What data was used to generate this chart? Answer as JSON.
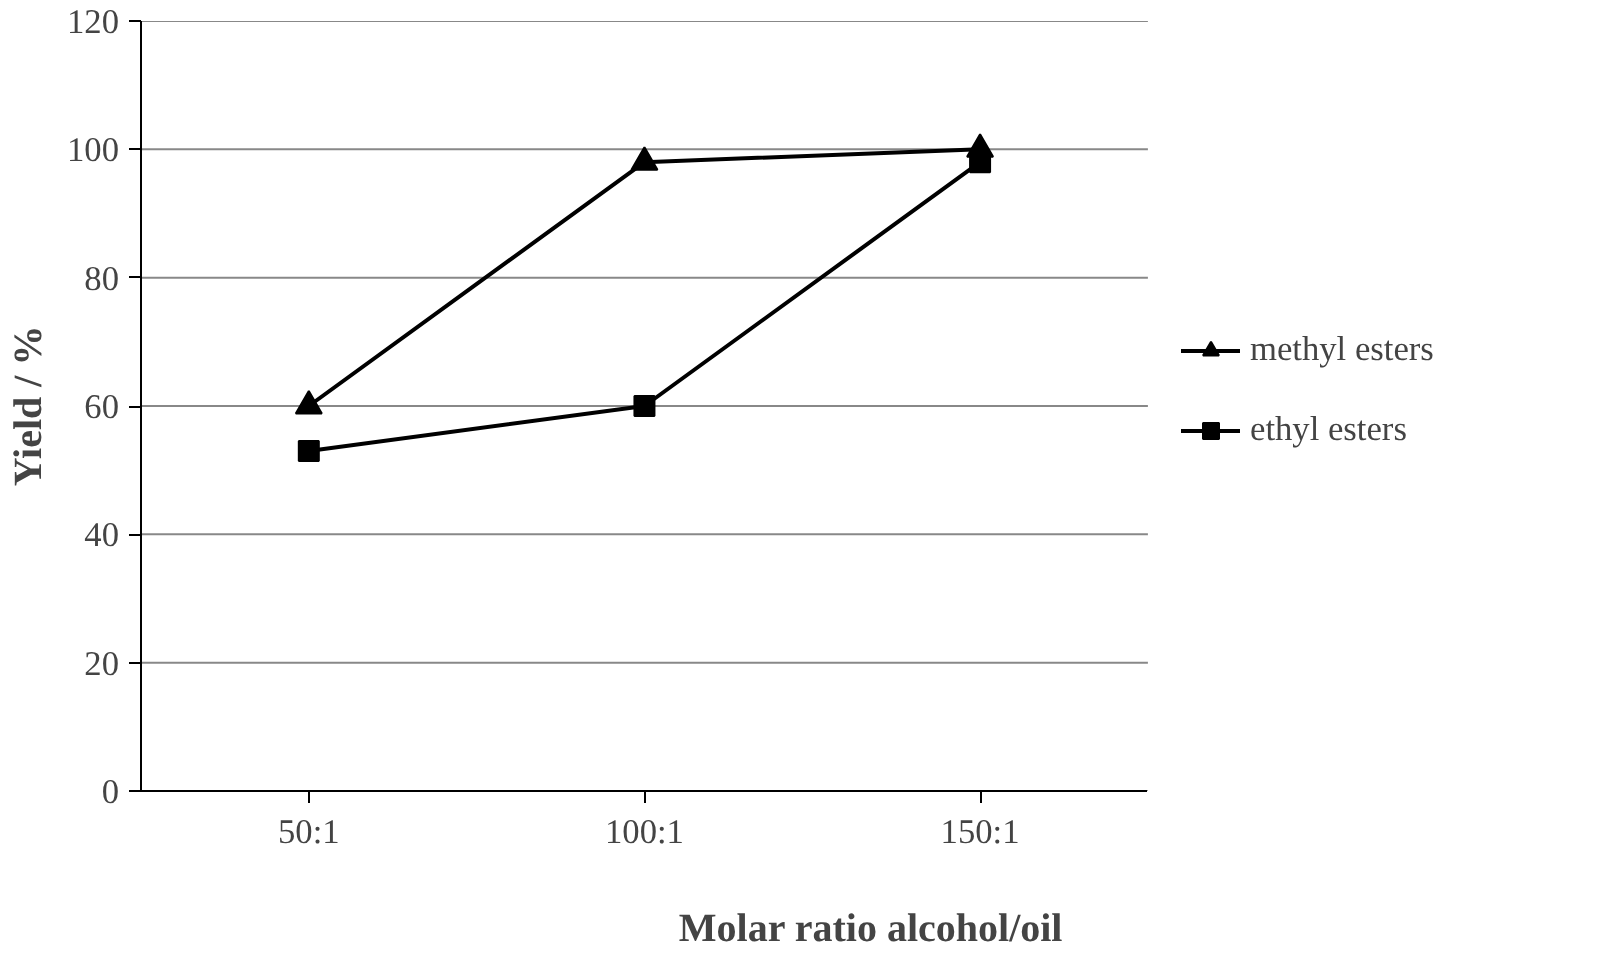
{
  "chart_data": {
    "type": "line",
    "xlabel": "Molar ratio alcohol/oil",
    "ylabel": "Yield / %",
    "categories": [
      "50:1",
      "100:1",
      "150:1"
    ],
    "series": [
      {
        "name": "methyl esters",
        "color": "#000000",
        "marker": "triangle",
        "values": [
          60,
          98,
          100
        ]
      },
      {
        "name": "ethyl esters",
        "color": "#000000",
        "marker": "square",
        "values": [
          53,
          60,
          98
        ]
      }
    ],
    "ylim": [
      0,
      120
    ],
    "yticks": [
      0,
      20,
      40,
      60,
      80,
      100,
      120
    ],
    "grid": "y",
    "legend": "right",
    "line_style": "solid"
  }
}
